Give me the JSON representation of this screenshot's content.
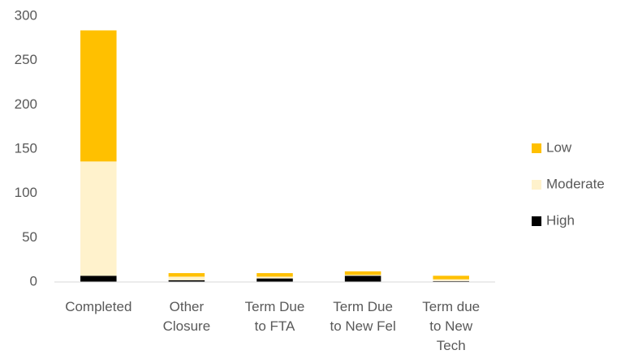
{
  "chart_data": {
    "type": "stacked_bar",
    "categories": [
      "Completed",
      "Other Closure",
      "Term Due to FTA",
      "Term Due to New Fel",
      "Term due to New Tech"
    ],
    "series": [
      {
        "name": "High",
        "color": "#000000",
        "values": [
          7,
          2,
          4,
          7,
          1
        ]
      },
      {
        "name": "Moderate",
        "color": "#fff2cc",
        "values": [
          129,
          4,
          2,
          1,
          2
        ]
      },
      {
        "name": "Low",
        "color": "#ffc000",
        "values": [
          148,
          4,
          4,
          4,
          4
        ]
      }
    ],
    "ylim": [
      0,
      300
    ],
    "yticks": [
      0,
      50,
      100,
      150,
      200,
      250,
      300
    ],
    "grid": false,
    "legend": "right"
  }
}
